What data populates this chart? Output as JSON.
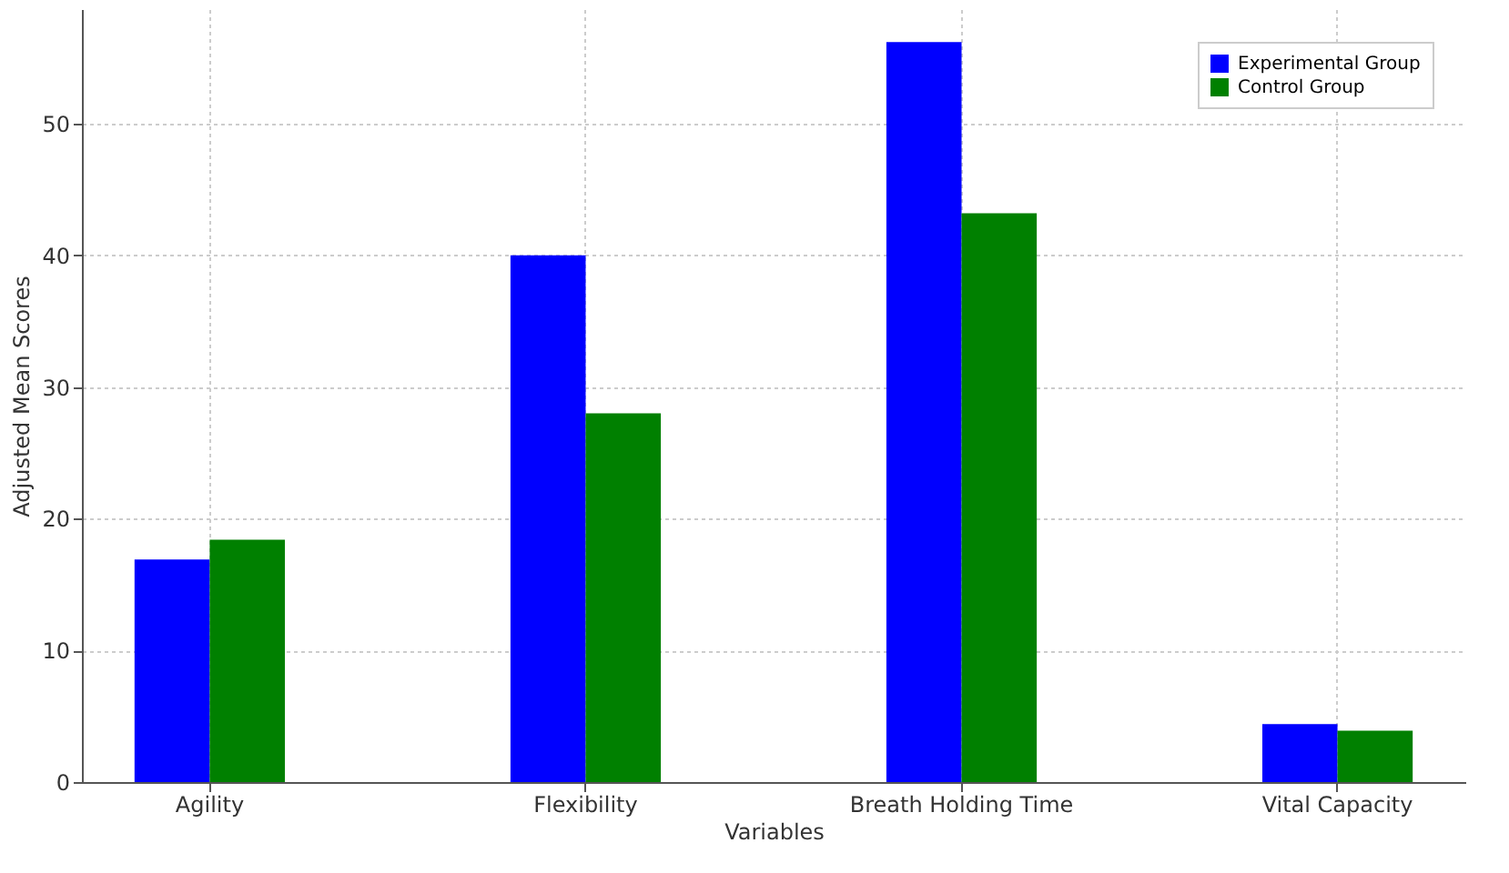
{
  "chart_data": {
    "type": "bar",
    "xlabel": "Variables",
    "ylabel": "Adjusted Mean Scores",
    "categories": [
      "Agility",
      "Flexibility",
      "Breath Holding Time",
      "Vital Capacity"
    ],
    "series": [
      {
        "name": "Experimental Group",
        "color": "#0000ff",
        "values": [
          16.9,
          40.0,
          56.2,
          4.4
        ]
      },
      {
        "name": "Control Group",
        "color": "#008000",
        "values": [
          18.4,
          28.0,
          43.2,
          3.9
        ]
      }
    ],
    "ylim": [
      0,
      58.7
    ],
    "yticks": [
      0,
      10,
      20,
      30,
      40,
      50
    ],
    "grid": true,
    "legend": "top right"
  }
}
